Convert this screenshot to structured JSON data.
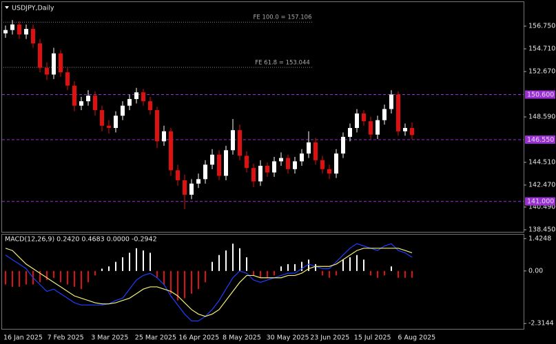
{
  "chart_data": [
    {
      "type": "candlestick",
      "title": "USDJPY,Daily",
      "x_labels": [
        "16 Jan 2025",
        "7 Feb 2025",
        "3 Mar 2025",
        "25 Mar 2025",
        "16 Apr 2025",
        "8 May 2025",
        "30 May 2025",
        "23 Jun 2025",
        "15 Jul 2025",
        "6 Aug 2025"
      ],
      "ylim": [
        138.2,
        158.79
      ],
      "yticks": [
        {
          "value": 156.75,
          "label": "156.750"
        },
        {
          "value": 154.71,
          "label": "154.710"
        },
        {
          "value": 152.67,
          "label": "152.670"
        },
        {
          "value": 148.59,
          "label": "148.590"
        },
        {
          "value": 144.51,
          "label": "144.510"
        },
        {
          "value": 142.47,
          "label": "142.470"
        },
        {
          "value": 140.49,
          "label": "140.490"
        },
        {
          "value": 138.45,
          "label": "138.450"
        }
      ],
      "levels": [
        {
          "value": 150.6,
          "label": "150.600"
        },
        {
          "value": 146.55,
          "label": "146.550"
        },
        {
          "value": 141,
          "label": "141.000"
        }
      ],
      "fib": [
        {
          "value": 157.106,
          "label": "FE 100.0 = 157.106"
        },
        {
          "value": 153.044,
          "label": "FE 61.8 = 153.044"
        }
      ],
      "up_color": "#ffffff",
      "down_color": "#e01010",
      "level_color": "#9b30d0",
      "fib_color": "#8a8a8a",
      "open": [
        156.1,
        156.4,
        156.9,
        156.0,
        156.5,
        155.2,
        153.0,
        152.4,
        154.3,
        152.6,
        151.4,
        149.6,
        150.0,
        150.5,
        149.2,
        147.8,
        147.6,
        148.7,
        149.6,
        150.2,
        150.8,
        150.0,
        149.2,
        146.4,
        147.3,
        143.8,
        142.9,
        141.6,
        142.6,
        143.0,
        144.3,
        145.2,
        143.3,
        145.6,
        147.4,
        145.1,
        144.0,
        142.8,
        144.2,
        143.6,
        144.6,
        144.9,
        143.9,
        144.6,
        145.3,
        146.3,
        144.7,
        143.9,
        143.5,
        145.3,
        146.8,
        147.6,
        148.9,
        148.2,
        147.0,
        148.3,
        149.3,
        150.6,
        147.3,
        147.6
      ],
      "high": [
        156.8,
        157.3,
        157.2,
        156.9,
        156.9,
        155.6,
        153.5,
        154.8,
        154.6,
        153.0,
        151.8,
        150.4,
        151.0,
        150.9,
        149.6,
        148.3,
        149.1,
        150.0,
        150.6,
        151.2,
        151.1,
        150.4,
        149.5,
        147.8,
        147.6,
        144.3,
        143.4,
        143.0,
        143.5,
        144.7,
        145.7,
        145.6,
        146.0,
        148.4,
        147.9,
        145.5,
        144.4,
        144.7,
        144.5,
        145.0,
        145.4,
        145.2,
        145.0,
        145.7,
        147.3,
        146.7,
        145.1,
        144.3,
        145.7,
        147.2,
        148.0,
        149.3,
        149.2,
        148.6,
        148.7,
        149.7,
        151.0,
        150.9,
        148.0,
        148.1
      ],
      "low": [
        155.7,
        156.0,
        155.6,
        155.6,
        154.8,
        152.6,
        151.9,
        152.0,
        152.2,
        151.0,
        149.1,
        149.2,
        149.6,
        148.7,
        147.3,
        147.1,
        147.2,
        148.3,
        149.2,
        149.8,
        149.6,
        148.8,
        145.8,
        146.0,
        143.3,
        142.4,
        140.3,
        141.2,
        142.2,
        142.6,
        143.9,
        142.9,
        142.9,
        145.2,
        144.7,
        143.6,
        142.3,
        142.4,
        143.2,
        143.2,
        144.2,
        143.5,
        143.5,
        144.2,
        144.9,
        144.3,
        143.5,
        143.0,
        143.1,
        144.9,
        146.4,
        147.2,
        147.8,
        146.6,
        146.6,
        147.9,
        148.9,
        146.9,
        146.9,
        146.6
      ],
      "close": [
        156.4,
        156.9,
        156.0,
        156.5,
        155.2,
        153.0,
        152.4,
        154.3,
        152.6,
        151.4,
        149.6,
        150.0,
        150.5,
        149.2,
        147.8,
        147.6,
        148.7,
        149.6,
        150.2,
        150.8,
        150.0,
        149.2,
        146.4,
        147.3,
        143.8,
        142.9,
        141.6,
        142.6,
        143.0,
        144.3,
        145.2,
        143.3,
        145.6,
        147.4,
        145.1,
        144.0,
        142.8,
        144.2,
        143.6,
        144.6,
        144.9,
        143.9,
        144.6,
        145.3,
        146.3,
        144.7,
        143.9,
        143.5,
        145.3,
        146.8,
        147.6,
        148.9,
        148.2,
        147.0,
        148.3,
        149.3,
        150.6,
        147.3,
        147.6,
        146.96
      ]
    },
    {
      "type": "macd",
      "title": "MACD(12,26,9) 0.2420 0.4683 0.0000 -0.2942",
      "ylim": [
        -2.55,
        1.6
      ],
      "yticks": [
        1.4248,
        {
          "value": 0,
          "label": "0.00"
        },
        -2.3144
      ],
      "hist_up_color": "#ffffff",
      "hist_down_color": "#e01010",
      "macd_color": "#1f3fff",
      "signal_color": "#f5f07a",
      "histogram": [
        -0.6,
        -0.7,
        -0.7,
        -0.6,
        -0.6,
        -0.5,
        -0.4,
        -0.3,
        -0.5,
        -0.6,
        -0.7,
        -0.8,
        -0.5,
        -0.2,
        0.1,
        0.2,
        0.4,
        0.6,
        0.8,
        1.0,
        0.9,
        0.8,
        -0.3,
        -0.6,
        -1.0,
        -1.3,
        -1.2,
        -1.0,
        -0.8,
        -0.5,
        0.4,
        0.7,
        0.9,
        1.2,
        1.0,
        0.6,
        -0.2,
        -0.3,
        -0.3,
        -0.2,
        0.2,
        0.3,
        0.3,
        0.4,
        0.5,
        0.3,
        -0.2,
        -0.3,
        -0.2,
        0.5,
        0.6,
        0.7,
        0.5,
        -0.2,
        -0.3,
        -0.2,
        0.2,
        -0.3,
        -0.3,
        -0.3
      ],
      "macd": [
        0.7,
        0.5,
        0.3,
        0.1,
        -0.3,
        -0.6,
        -0.9,
        -0.8,
        -1.0,
        -1.2,
        -1.4,
        -1.5,
        -1.5,
        -1.5,
        -1.5,
        -1.45,
        -1.3,
        -1.2,
        -0.8,
        -0.4,
        -0.2,
        -0.1,
        -0.3,
        -0.6,
        -1.1,
        -1.5,
        -1.9,
        -2.2,
        -2.2,
        -2.0,
        -1.7,
        -1.3,
        -0.8,
        -0.3,
        0.0,
        -0.1,
        -0.4,
        -0.5,
        -0.4,
        -0.3,
        -0.2,
        -0.1,
        -0.1,
        0.1,
        0.3,
        0.2,
        0.1,
        0.1,
        0.4,
        0.7,
        1.0,
        1.2,
        1.1,
        1.0,
        0.9,
        1.1,
        1.2,
        0.9,
        0.8,
        0.6
      ],
      "signal": [
        1.0,
        0.9,
        0.6,
        0.3,
        0.1,
        -0.1,
        -0.3,
        -0.5,
        -0.7,
        -0.9,
        -1.1,
        -1.2,
        -1.3,
        -1.4,
        -1.45,
        -1.45,
        -1.4,
        -1.3,
        -1.2,
        -1.0,
        -0.8,
        -0.7,
        -0.7,
        -0.8,
        -0.9,
        -1.1,
        -1.4,
        -1.7,
        -1.9,
        -2.0,
        -1.9,
        -1.7,
        -1.3,
        -0.9,
        -0.5,
        -0.2,
        -0.2,
        -0.3,
        -0.3,
        -0.3,
        -0.3,
        -0.2,
        -0.2,
        -0.1,
        0.1,
        0.2,
        0.2,
        0.2,
        0.3,
        0.5,
        0.7,
        0.9,
        1.0,
        1.0,
        1.0,
        1.0,
        1.0,
        1.0,
        0.9,
        0.8
      ]
    }
  ]
}
